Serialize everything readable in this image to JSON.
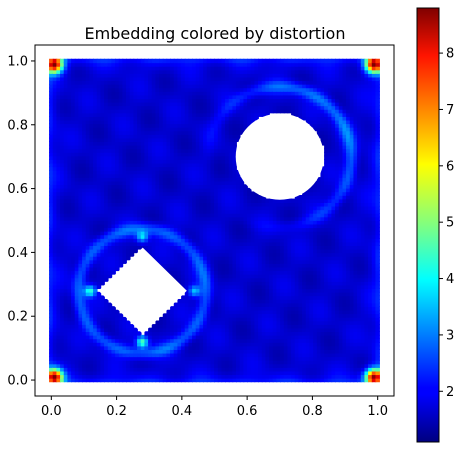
{
  "chart_data": {
    "type": "heatmap",
    "title": "Embedding colored by distortion",
    "xlabel": "",
    "ylabel": "",
    "xlim": [
      -0.05,
      1.05
    ],
    "ylim": [
      -0.05,
      1.05
    ],
    "x_ticks": [
      0.0,
      0.2,
      0.4,
      0.6,
      0.8,
      1.0
    ],
    "x_tick_labels": [
      "0.0",
      "0.2",
      "0.4",
      "0.6",
      "0.8",
      "1.0"
    ],
    "y_ticks": [
      0.0,
      0.2,
      0.4,
      0.6,
      0.8,
      1.0
    ],
    "y_tick_labels": [
      "0.0",
      "0.2",
      "0.4",
      "0.6",
      "0.8",
      "1.0"
    ],
    "domain": {
      "x": [
        0.0,
        1.0
      ],
      "y": [
        0.0,
        1.0
      ]
    },
    "holes": [
      {
        "shape": "circle",
        "center": [
          0.7,
          0.7
        ],
        "radius": 0.135
      },
      {
        "shape": "diamond",
        "center": [
          0.28,
          0.28
        ],
        "half_diagonal": 0.135
      }
    ],
    "base_value": 1.7,
    "hotspots": [
      {
        "x": 0.01,
        "y": 0.99,
        "value": 8.5
      },
      {
        "x": 0.99,
        "y": 0.99,
        "value": 8.5
      },
      {
        "x": 0.01,
        "y": 0.01,
        "value": 8.5
      },
      {
        "x": 0.99,
        "y": 0.01,
        "value": 8.5
      },
      {
        "x": 0.28,
        "y": 0.45,
        "value": 3.6
      },
      {
        "x": 0.28,
        "y": 0.12,
        "value": 4.6
      },
      {
        "x": 0.12,
        "y": 0.28,
        "value": 4.2
      },
      {
        "x": 0.44,
        "y": 0.28,
        "value": 3.5
      }
    ],
    "colorbar": {
      "colormap": "jet",
      "min": 1.1,
      "max": 8.8,
      "ticks": [
        2,
        3,
        4,
        5,
        6,
        7,
        8
      ],
      "tick_labels": [
        "2",
        "3",
        "4",
        "5",
        "6",
        "7",
        "8"
      ]
    }
  }
}
